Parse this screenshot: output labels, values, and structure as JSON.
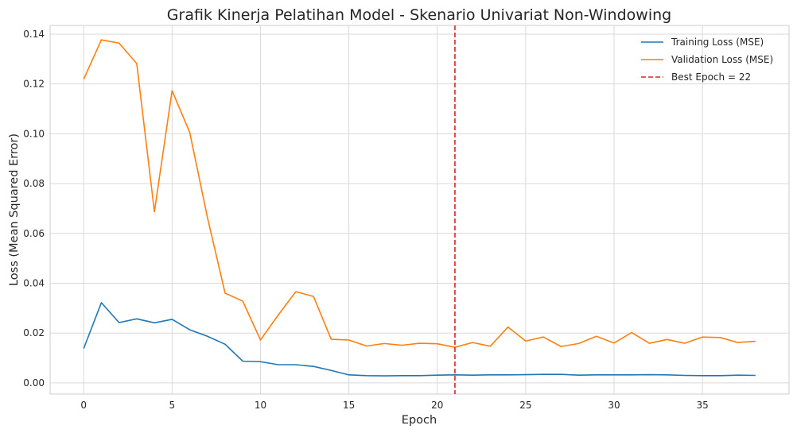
{
  "chart_data": {
    "type": "line",
    "title": "Grafik Kinerja Pelatihan Model - Skenario Univariat Non-Windowing",
    "xlabel": "Epoch",
    "ylabel": "Loss (Mean Squared Error)",
    "xlim": [
      -1.9,
      39.9
    ],
    "ylim": [
      -0.0045,
      0.1435
    ],
    "xticks": [
      0,
      5,
      10,
      15,
      20,
      25,
      30,
      35
    ],
    "yticks": [
      0.0,
      0.02,
      0.04,
      0.06,
      0.08,
      0.1,
      0.12,
      0.14
    ],
    "ytick_labels": [
      "0.00",
      "0.02",
      "0.04",
      "0.06",
      "0.08",
      "0.10",
      "0.12",
      "0.14"
    ],
    "grid": true,
    "legend_position": "top-right",
    "x": [
      0,
      1,
      2,
      3,
      4,
      5,
      6,
      7,
      8,
      9,
      10,
      11,
      12,
      13,
      14,
      15,
      16,
      17,
      18,
      19,
      20,
      21,
      22,
      23,
      24,
      25,
      26,
      27,
      28,
      29,
      30,
      31,
      32,
      33,
      34,
      35,
      36,
      37,
      38
    ],
    "series": [
      {
        "name": "Training Loss (MSE)",
        "color": "#1f77b4",
        "values": [
          0.0138,
          0.0322,
          0.0242,
          0.0257,
          0.0241,
          0.0255,
          0.0213,
          0.0187,
          0.0155,
          0.0087,
          0.0085,
          0.0073,
          0.0073,
          0.0066,
          0.005,
          0.0032,
          0.0029,
          0.0028,
          0.0029,
          0.0029,
          0.0031,
          0.0032,
          0.0031,
          0.0032,
          0.0032,
          0.0033,
          0.0034,
          0.0034,
          0.0031,
          0.0032,
          0.0032,
          0.0032,
          0.0033,
          0.0032,
          0.003,
          0.0029,
          0.0029,
          0.0031,
          0.003
        ]
      },
      {
        "name": "Validation Loss (MSE)",
        "color": "#ff7f0e",
        "values": [
          0.1219,
          0.1377,
          0.1364,
          0.1282,
          0.0687,
          0.1173,
          0.1005,
          0.0664,
          0.036,
          0.0328,
          0.0172,
          0.0272,
          0.0366,
          0.0347,
          0.0175,
          0.0172,
          0.0148,
          0.0158,
          0.0151,
          0.0159,
          0.0157,
          0.0143,
          0.0162,
          0.0147,
          0.0224,
          0.0168,
          0.0184,
          0.0146,
          0.0158,
          0.0187,
          0.016,
          0.0202,
          0.0159,
          0.0174,
          0.0159,
          0.0184,
          0.0182,
          0.0162,
          0.0167
        ]
      }
    ],
    "vline": {
      "x": 21,
      "label": "Best Epoch = 22",
      "color": "#d62728"
    }
  }
}
